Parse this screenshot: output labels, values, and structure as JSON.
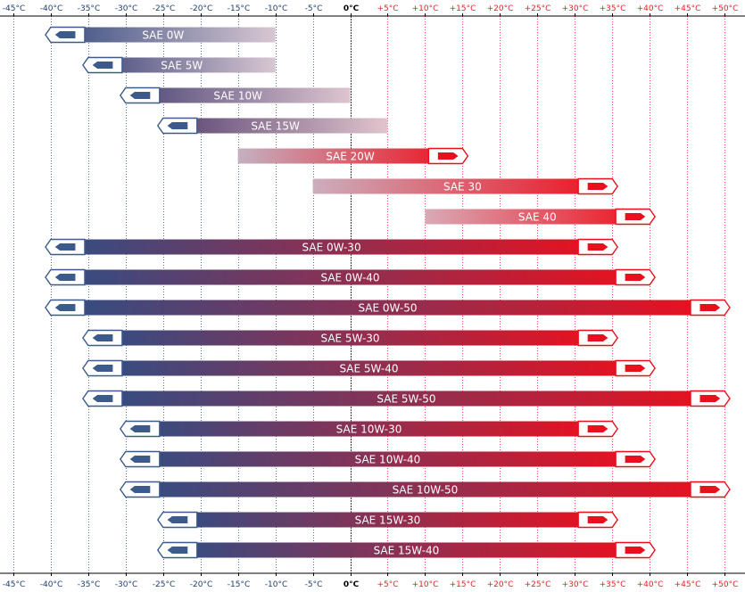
{
  "chart_data": {
    "type": "range-bar",
    "title": "",
    "xlabel": "",
    "ylabel": "",
    "x_unit": "°C",
    "xlim": [
      -45,
      50
    ],
    "x_ticks": [
      {
        "value": -45,
        "label": "-45°C"
      },
      {
        "value": -40,
        "label": "-40°C"
      },
      {
        "value": -35,
        "label": "-35°C"
      },
      {
        "value": -30,
        "label": "-30°C"
      },
      {
        "value": -25,
        "label": "-25°C"
      },
      {
        "value": -20,
        "label": "-20°C"
      },
      {
        "value": -15,
        "label": "-15°C"
      },
      {
        "value": -10,
        "label": "-10°C"
      },
      {
        "value": -5,
        "label": "-5°C"
      },
      {
        "value": 0,
        "label": "0°C"
      },
      {
        "value": 5,
        "label": "+5°C"
      },
      {
        "value": 10,
        "label": "+10°C"
      },
      {
        "value": 15,
        "label": "+15°C"
      },
      {
        "value": 20,
        "label": "+20°C"
      },
      {
        "value": 25,
        "label": "+25°C"
      },
      {
        "value": 30,
        "label": "+30°C"
      },
      {
        "value": 35,
        "label": "+35°C"
      },
      {
        "value": 40,
        "label": "+40°C"
      },
      {
        "value": 45,
        "label": "+45°C"
      },
      {
        "value": 50,
        "label": "+50°C"
      }
    ],
    "ticks_top_and_bottom": true,
    "grid": true,
    "colors": {
      "cold": "#2e4f86",
      "cold_light": "#dce6f3",
      "hot": "#ee0f1c",
      "hot_light": "#f8c9cc",
      "cold_grid": "#2a4f84",
      "hot_grid": "#e8202a",
      "zero_line": "#3a3a3a",
      "cold_arrow_fill": "#3d5b8a",
      "hot_arrow_fill": "#e8101c"
    },
    "series": [
      {
        "label": "SAE 0W",
        "min": -40,
        "max": -10,
        "arrow_left": true,
        "arrow_right": false
      },
      {
        "label": "SAE 5W",
        "min": -35,
        "max": -10,
        "arrow_left": true,
        "arrow_right": false
      },
      {
        "label": "SAE 10W",
        "min": -30,
        "max": 0,
        "arrow_left": true,
        "arrow_right": false
      },
      {
        "label": "SAE 15W",
        "min": -25,
        "max": 5,
        "arrow_left": true,
        "arrow_right": false
      },
      {
        "label": "SAE 20W",
        "min": -15,
        "max": 15,
        "arrow_left": false,
        "arrow_right": true
      },
      {
        "label": "SAE 30",
        "min": -5,
        "max": 35,
        "arrow_left": false,
        "arrow_right": true
      },
      {
        "label": "SAE 40",
        "min": 10,
        "max": 40,
        "arrow_left": false,
        "arrow_right": true
      },
      {
        "label": "SAE 0W-30",
        "min": -40,
        "max": 35,
        "arrow_left": true,
        "arrow_right": true
      },
      {
        "label": "SAE 0W-40",
        "min": -40,
        "max": 40,
        "arrow_left": true,
        "arrow_right": true
      },
      {
        "label": "SAE 0W-50",
        "min": -40,
        "max": 50,
        "arrow_left": true,
        "arrow_right": true
      },
      {
        "label": "SAE 5W-30",
        "min": -35,
        "max": 35,
        "arrow_left": true,
        "arrow_right": true
      },
      {
        "label": "SAE 5W-40",
        "min": -35,
        "max": 40,
        "arrow_left": true,
        "arrow_right": true
      },
      {
        "label": "SAE 5W-50",
        "min": -35,
        "max": 50,
        "arrow_left": true,
        "arrow_right": true
      },
      {
        "label": "SAE 10W-30",
        "min": -30,
        "max": 35,
        "arrow_left": true,
        "arrow_right": true
      },
      {
        "label": "SAE 10W-40",
        "min": -30,
        "max": 40,
        "arrow_left": true,
        "arrow_right": true
      },
      {
        "label": "SAE 10W-50",
        "min": -30,
        "max": 50,
        "arrow_left": true,
        "arrow_right": true
      },
      {
        "label": "SAE 15W-30",
        "min": -25,
        "max": 35,
        "arrow_left": true,
        "arrow_right": true
      },
      {
        "label": "SAE 15W-40",
        "min": -25,
        "max": 40,
        "arrow_left": true,
        "arrow_right": true
      }
    ]
  }
}
